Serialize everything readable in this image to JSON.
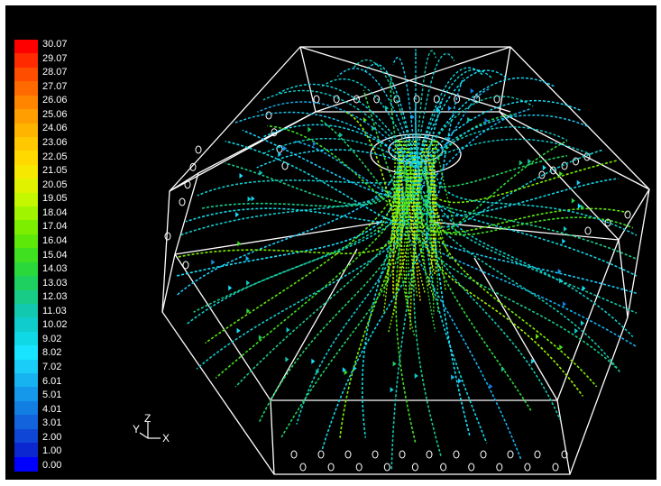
{
  "colorbar": {
    "ticks": [
      "30.07",
      "29.07",
      "28.07",
      "27.07",
      "26.06",
      "25.06",
      "24.06",
      "23.06",
      "22.05",
      "21.05",
      "20.05",
      "19.05",
      "18.04",
      "17.04",
      "16.04",
      "15.04",
      "14.03",
      "13.03",
      "12.03",
      "11.03",
      "10.02",
      "9.02",
      "8.02",
      "7.02",
      "6.01",
      "5.01",
      "4.01",
      "3.01",
      "2.00",
      "1.00",
      "0.00"
    ],
    "colors": [
      "#ff0000",
      "#ff2a00",
      "#ff4d00",
      "#ff6a00",
      "#ff8500",
      "#ff9e00",
      "#ffb400",
      "#ffc800",
      "#ffd900",
      "#f6e800",
      "#e0f200",
      "#c3f800",
      "#a0f400",
      "#7eee00",
      "#5ee80a",
      "#3fe020",
      "#2ad83c",
      "#1ed060",
      "#18cc88",
      "#12c8ae",
      "#10cccc",
      "#10d8e4",
      "#18e4ff",
      "#1acdf8",
      "#17b3f0",
      "#1598ea",
      "#137ee2",
      "#1263dc",
      "#0f46d6",
      "#0b28d0",
      "#0000ff"
    ]
  },
  "axes": {
    "y": "Y",
    "z": "Z",
    "x": "X"
  },
  "colors": {
    "background": "#000000",
    "wireframe": "#ffffff"
  }
}
